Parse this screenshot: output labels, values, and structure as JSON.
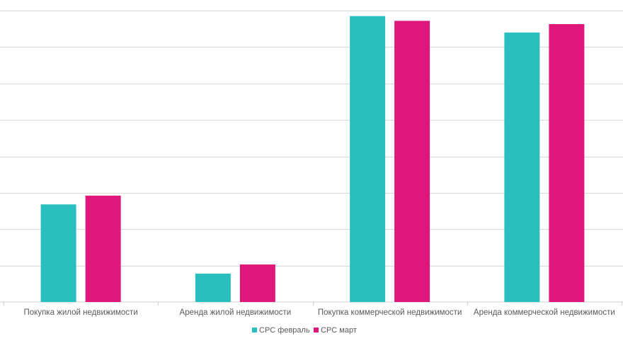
{
  "chart_data": {
    "type": "bar",
    "categories": [
      "Покупка жилой недвижимости",
      "Аренда жилой недвижимости",
      "Покупка коммерческой недвижимости",
      "Аренда коммерческой недвижимости"
    ],
    "series": [
      {
        "name": "CPC февраль",
        "color": "#29bfbf",
        "values": [
          2.68,
          0.78,
          7.85,
          7.4
        ]
      },
      {
        "name": "CPC март",
        "color": "#e0177a",
        "values": [
          2.92,
          1.03,
          7.72,
          7.63
        ]
      }
    ],
    "ylim": [
      0,
      8
    ],
    "ytick_step": 1,
    "grid": true,
    "legend_position": "bottom"
  }
}
